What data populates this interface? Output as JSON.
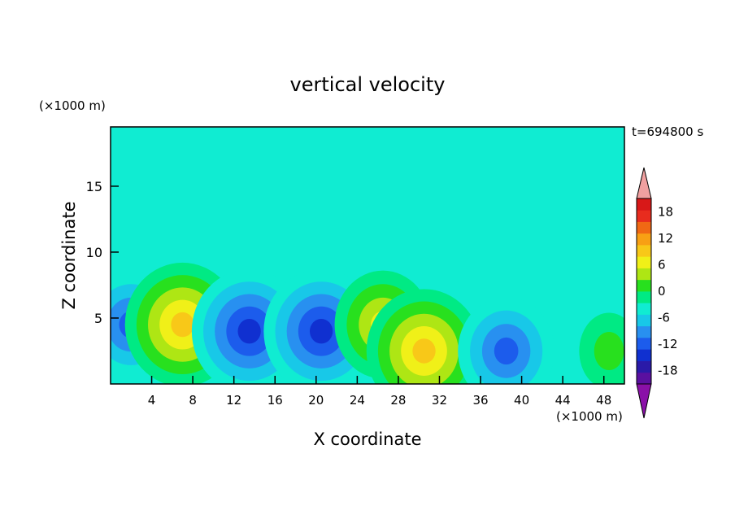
{
  "chart_data": {
    "type": "heatmap",
    "title": "vertical velocity",
    "xlabel": "X coordinate",
    "ylabel": "Z coordinate",
    "x_unit": "(×1000 m)",
    "y_unit": "(×1000 m)",
    "time_label": "t=694800 s",
    "xlim": [
      0,
      50
    ],
    "ylim": [
      0,
      19.5
    ],
    "x_ticks": [
      4,
      8,
      12,
      16,
      20,
      24,
      28,
      32,
      36,
      40,
      44,
      48
    ],
    "y_ticks": [
      5,
      10,
      15
    ],
    "colorbar": {
      "levels": [
        -21,
        -18,
        -15,
        -12,
        -9,
        -6,
        -3,
        0,
        3,
        6,
        9,
        12,
        15,
        18,
        21
      ],
      "tick_labels": [
        -18,
        -12,
        -6,
        0,
        6,
        12,
        18
      ],
      "colors": [
        "#5a10a0",
        "#2a1aa8",
        "#1030d0",
        "#1c5cec",
        "#2890f0",
        "#18c8e8",
        "#10ecd2",
        "#00ea84",
        "#28e01e",
        "#aee614",
        "#f0f018",
        "#f8c818",
        "#f8a014",
        "#f06814",
        "#e82c1e",
        "#d81818"
      ],
      "under_color": "#8a10a8",
      "over_color": "#f0a0a0"
    },
    "features": [
      {
        "x": 2.0,
        "z": 4.5,
        "w": -9
      },
      {
        "x": 7.0,
        "z": 4.5,
        "w": 12
      },
      {
        "x": 13.5,
        "z": 4.0,
        "w": -12
      },
      {
        "x": 20.5,
        "z": 4.0,
        "w": -12
      },
      {
        "x": 26.5,
        "z": 4.5,
        "w": 9
      },
      {
        "x": 30.5,
        "z": 2.5,
        "w": 12
      },
      {
        "x": 38.5,
        "z": 2.5,
        "w": -9
      },
      {
        "x": 48.5,
        "z": 2.5,
        "w": 3
      }
    ]
  }
}
